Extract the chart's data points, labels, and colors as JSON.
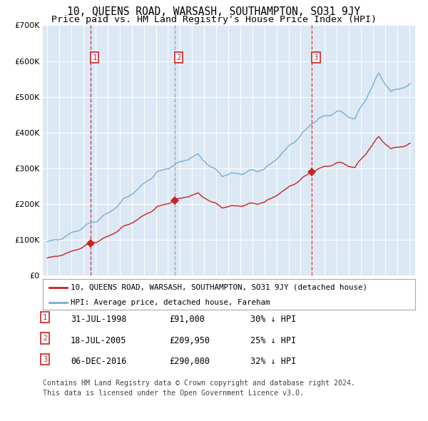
{
  "title1": "10, QUEENS ROAD, WARSASH, SOUTHAMPTON, SO31 9JY",
  "title2": "Price paid vs. HM Land Registry's House Price Index (HPI)",
  "ylim": [
    0,
    700000
  ],
  "yticks": [
    0,
    100000,
    200000,
    300000,
    400000,
    500000,
    600000,
    700000
  ],
  "purchases": [
    {
      "label": "1",
      "date": "31-JUL-1998",
      "price": 91000,
      "price_str": "£91,000",
      "hpi_pct": "30% ↓ HPI",
      "x_year": 1998.58,
      "vline_color": "#cc2222"
    },
    {
      "label": "2",
      "date": "18-JUL-2005",
      "price": 209950,
      "price_str": "£209,950",
      "hpi_pct": "25% ↓ HPI",
      "x_year": 2005.54,
      "vline_color": "#999999"
    },
    {
      "label": "3",
      "date": "06-DEC-2016",
      "price": 290000,
      "price_str": "£290,000",
      "hpi_pct": "32% ↓ HPI",
      "x_year": 2016.93,
      "vline_color": "#cc2222"
    }
  ],
  "legend_red_label": "10, QUEENS ROAD, WARSASH, SOUTHAMPTON, SO31 9JY (detached house)",
  "legend_blue_label": "HPI: Average price, detached house, Fareham",
  "footnote1": "Contains HM Land Registry data © Crown copyright and database right 2024.",
  "footnote2": "This data is licensed under the Open Government Licence v3.0.",
  "bg_color": "#dce9f5",
  "grid_color": "#ffffff",
  "red_line_color": "#cc2222",
  "blue_line_color": "#7aadd4",
  "title_fontsize": 10.5,
  "subtitle_fontsize": 9.5,
  "tick_fontsize": 8,
  "xlim_left": 1994.62,
  "xlim_right": 2025.5
}
